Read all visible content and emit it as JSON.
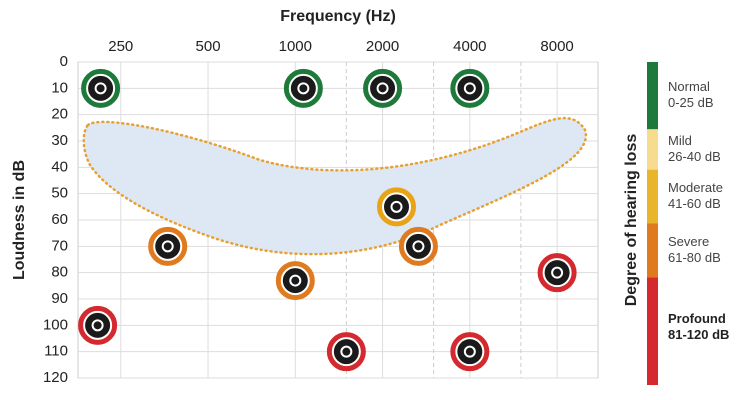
{
  "chart_data": {
    "type": "scatter",
    "x_label": "Frequency (Hz)",
    "y_label": "Loudness in dB",
    "xlim": [
      178,
      11070
    ],
    "log_x": true,
    "xticks": [
      250,
      500,
      1000,
      2000,
      4000,
      8000
    ],
    "x_minor_grid": [
      1500,
      3000,
      6000
    ],
    "ylim": [
      0,
      120
    ],
    "y_inverted": true,
    "yticks": [
      0,
      10,
      20,
      30,
      40,
      50,
      60,
      70,
      80,
      90,
      100,
      110,
      120
    ],
    "grid": true,
    "points": [
      {
        "x": 213,
        "y": 10,
        "color": "#1e7a3a"
      },
      {
        "x": 1066,
        "y": 10,
        "color": "#1e7a3a"
      },
      {
        "x": 2000,
        "y": 10,
        "color": "#1e7a3a"
      },
      {
        "x": 4000,
        "y": 10,
        "color": "#1e7a3a"
      },
      {
        "x": 2234,
        "y": 55,
        "color": "#e9a317"
      },
      {
        "x": 363,
        "y": 70,
        "color": "#e07a1f"
      },
      {
        "x": 2659,
        "y": 70,
        "color": "#e07a1f"
      },
      {
        "x": 1000,
        "y": 83,
        "color": "#e07a1f"
      },
      {
        "x": 8000,
        "y": 80,
        "color": "#d42a2f"
      },
      {
        "x": 208,
        "y": 100,
        "color": "#d42a2f"
      },
      {
        "x": 1500,
        "y": 110,
        "color": "#d42a2f"
      },
      {
        "x": 4000,
        "y": 110,
        "color": "#d42a2f"
      }
    ],
    "legend_title": "Degree of hearing loss",
    "legend": [
      {
        "name": "Normal",
        "range": "0-25 dB",
        "color": "#1e7a3a",
        "from": 0,
        "to": 25
      },
      {
        "name": "Mild",
        "range": "26-40 dB",
        "color": "#f7dc8f",
        "from": 25,
        "to": 40
      },
      {
        "name": "Moderate",
        "range": "41-60 dB",
        "color": "#e9b52a",
        "from": 40,
        "to": 60
      },
      {
        "name": "Severe",
        "range": "61-80 dB",
        "color": "#e07a1f",
        "from": 60,
        "to": 80
      },
      {
        "name": "Profound",
        "range": "81-120 dB",
        "color": "#d42a2f",
        "from": 80,
        "to": 120
      }
    ]
  }
}
